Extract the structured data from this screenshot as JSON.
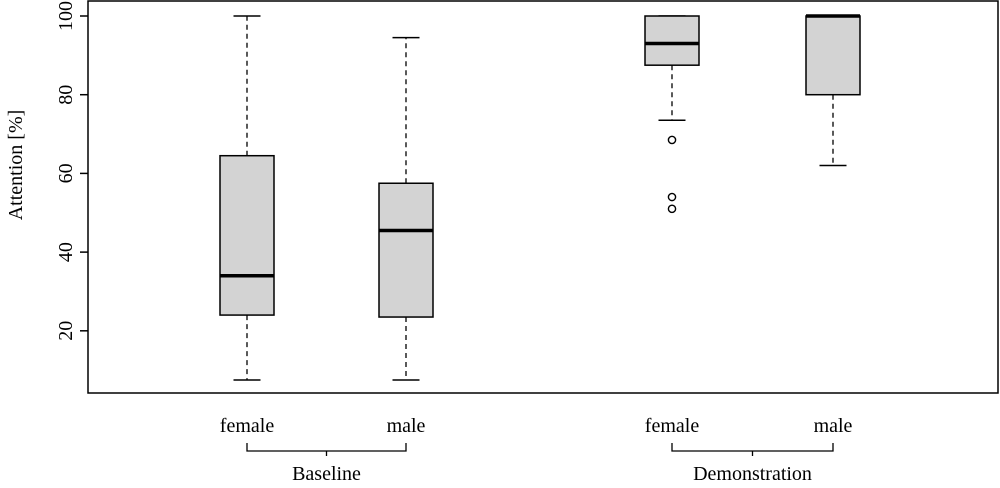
{
  "chart_data": {
    "type": "boxplot",
    "title": "",
    "ylabel": "Attention [%]",
    "xlabel": "",
    "ylim": [
      3,
      100
    ],
    "yticks": [
      20,
      40,
      60,
      80,
      100
    ],
    "grid": false,
    "legend": "none",
    "box_fill": "#d3d3d3",
    "groups": [
      {
        "label": "Baseline",
        "boxes": [
          {
            "label": "female",
            "whisker_low": 7.5,
            "q1": 24,
            "median": 34,
            "q3": 64.5,
            "whisker_high": 100,
            "outliers": []
          },
          {
            "label": "male",
            "whisker_low": 7.5,
            "q1": 23.5,
            "median": 45.5,
            "q3": 57.5,
            "whisker_high": 94.5,
            "outliers": []
          }
        ]
      },
      {
        "label": "Demonstration",
        "boxes": [
          {
            "label": "female",
            "whisker_low": 73.5,
            "q1": 87.5,
            "median": 93,
            "q3": 100,
            "whisker_high": 100,
            "outliers": [
              68.5,
              54,
              51
            ]
          },
          {
            "label": "male",
            "whisker_low": 62,
            "q1": 80,
            "median": 100,
            "q3": 100,
            "whisker_high": 100,
            "outliers": []
          }
        ]
      }
    ]
  }
}
